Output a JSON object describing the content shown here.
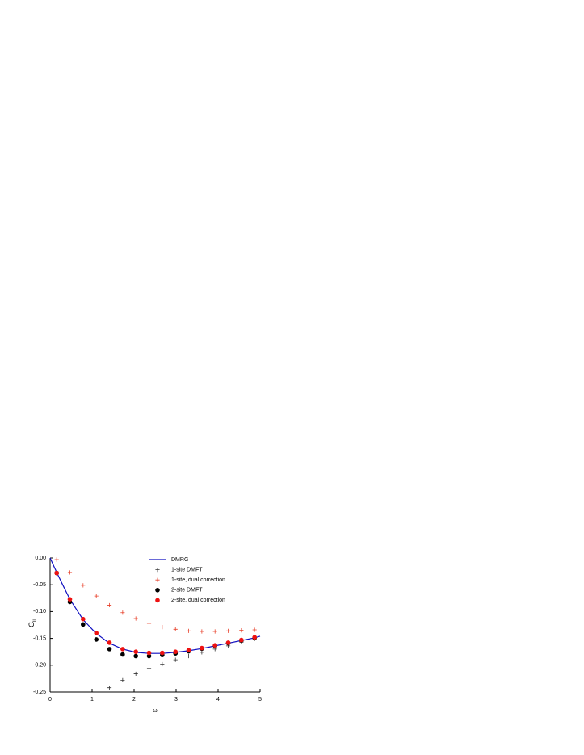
{
  "chart_data": {
    "type": "scatter",
    "xlabel": "ω",
    "ylabel": "G",
    "ylabel_sub": "ii",
    "xlim": [
      0,
      5
    ],
    "ylim": [
      -0.25,
      0
    ],
    "xticks": [
      0,
      1,
      2,
      3,
      4,
      5
    ],
    "yticks": [
      {
        "value": 0,
        "label": "0.00"
      },
      -0.05,
      {
        "value": -0.1,
        "label": "-0.10"
      },
      -0.15,
      {
        "value": -0.2,
        "label": "-0.20"
      },
      -0.25
    ],
    "series": [
      {
        "name": "DMRG",
        "color": "#1010c0",
        "style": "line",
        "x": [
          0,
          0.157,
          0.3,
          0.471,
          0.785,
          1.1,
          1.414,
          1.728,
          2.042,
          2.356,
          2.67,
          2.985,
          3.299,
          3.613,
          3.927,
          4.241,
          4.555,
          4.869,
          5
        ],
        "values": [
          0,
          -0.027,
          -0.05,
          -0.077,
          -0.115,
          -0.141,
          -0.159,
          -0.17,
          -0.176,
          -0.178,
          -0.178,
          -0.176,
          -0.173,
          -0.169,
          -0.164,
          -0.159,
          -0.154,
          -0.149,
          -0.146
        ]
      },
      {
        "name": "1-site DMFT",
        "color": "#333333",
        "style": "plus",
        "x": [
          1.414,
          1.728,
          2.042,
          2.356,
          2.67,
          2.985,
          3.299,
          3.613,
          3.927,
          4.241,
          4.555,
          4.869
        ],
        "values": [
          -0.242,
          -0.228,
          -0.216,
          -0.206,
          -0.198,
          -0.19,
          -0.183,
          -0.176,
          -0.17,
          -0.164,
          -0.157,
          -0.151
        ]
      },
      {
        "name": "1-site, dual correction",
        "color": "#e8402a",
        "style": "plus",
        "x": [
          0.157,
          0.471,
          0.785,
          1.1,
          1.414,
          1.728,
          2.042,
          2.356,
          2.67,
          2.985,
          3.299,
          3.613,
          3.927,
          4.241,
          4.555,
          4.869
        ],
        "values": [
          -0.003,
          -0.027,
          -0.051,
          -0.071,
          -0.088,
          -0.102,
          -0.113,
          -0.122,
          -0.129,
          -0.133,
          -0.136,
          -0.137,
          -0.137,
          -0.136,
          -0.135,
          -0.134
        ]
      },
      {
        "name": "2-site DMFT",
        "color": "#000000",
        "style": "dot",
        "x": [
          0.157,
          0.471,
          0.785,
          1.1,
          1.414,
          1.728,
          2.042,
          2.356,
          2.67,
          2.985,
          3.299,
          3.613,
          3.927,
          4.241,
          4.555,
          4.869
        ],
        "values": [
          -0.028,
          -0.082,
          -0.124,
          -0.152,
          -0.17,
          -0.18,
          -0.183,
          -0.183,
          -0.181,
          -0.178,
          -0.174,
          -0.169,
          -0.164,
          -0.159,
          -0.154,
          -0.149
        ]
      },
      {
        "name": "2-site, dual correction",
        "color": "#ee1111",
        "style": "dot",
        "x": [
          0.157,
          0.471,
          0.785,
          1.1,
          1.414,
          1.728,
          2.042,
          2.356,
          2.67,
          2.985,
          3.299,
          3.613,
          3.927,
          4.241,
          4.555,
          4.869
        ],
        "values": [
          -0.028,
          -0.077,
          -0.114,
          -0.14,
          -0.158,
          -0.17,
          -0.175,
          -0.177,
          -0.177,
          -0.175,
          -0.172,
          -0.168,
          -0.163,
          -0.158,
          -0.153,
          -0.148
        ]
      }
    ]
  }
}
